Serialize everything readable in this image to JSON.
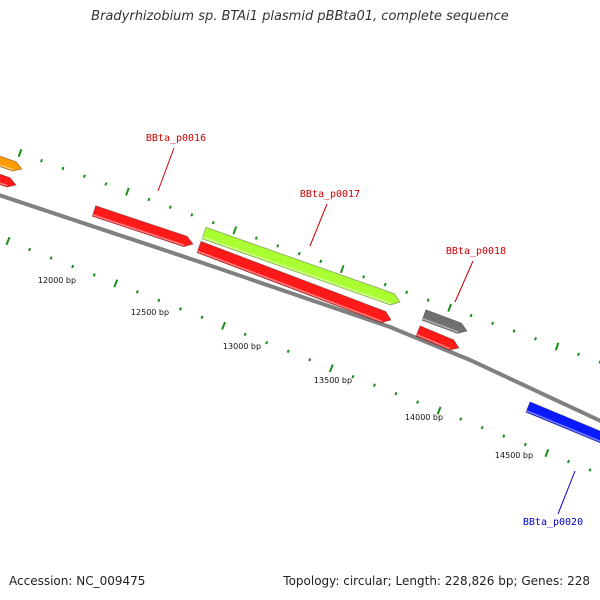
{
  "title": "Bradyrhizobium sp. BTAi1 plasmid pBBta01, complete sequence",
  "footer": {
    "accession": "Accession: NC_009475",
    "summary": "Topology: circular; Length: 228,826 bp; Genes: 228"
  },
  "colors": {
    "backbone": "#808080",
    "ticks": "#1a8c1a",
    "label_red": "#cc0000",
    "label_blue": "#0000cc",
    "gene_red": "#ff1a1a",
    "gene_green": "#aaff33",
    "gene_gray": "#707070",
    "gene_orange": "#ff9900",
    "gene_blue": "#0a1aff"
  },
  "genes": [
    {
      "name": "",
      "color": "gene_orange",
      "strand": "+",
      "ring": "outer"
    },
    {
      "name": "",
      "color": "gene_red",
      "strand": "+",
      "ring": "inner"
    },
    {
      "name": "BBta_p0016",
      "color": "gene_red",
      "strand": "+",
      "ring": "inner"
    },
    {
      "name": "BBta_p0017",
      "color": "gene_green",
      "strand": "+",
      "ring": "outer"
    },
    {
      "name": "",
      "color": "gene_red",
      "strand": "+",
      "ring": "inner"
    },
    {
      "name": "BBta_p0018",
      "color": "gene_gray",
      "strand": "+",
      "ring": "outer"
    },
    {
      "name": "",
      "color": "gene_red",
      "strand": "+",
      "ring": "inner"
    },
    {
      "name": "BBta_p0020",
      "color": "gene_blue",
      "strand": "+",
      "ring": "inner"
    }
  ],
  "tick_labels": [
    "12000 bp",
    "12500 bp",
    "13000 bp",
    "13500 bp",
    "14000 bp",
    "14500 bp"
  ]
}
